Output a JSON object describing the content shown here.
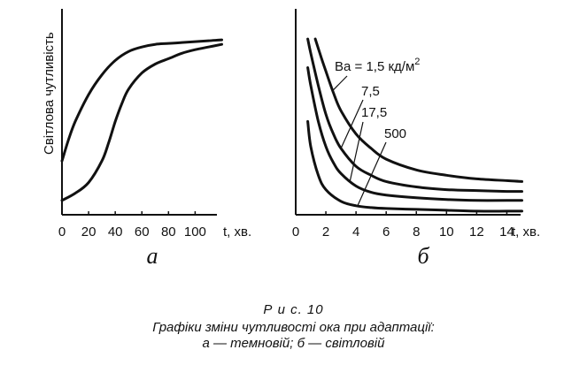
{
  "chart_data": [
    {
      "type": "line",
      "panel_label": "а",
      "ylabel": "Світлова чутливість",
      "xlabel": "t, хв.",
      "x_ticks": [
        "0",
        "20",
        "40",
        "60",
        "80",
        "100"
      ],
      "xlim": [
        0,
        125
      ],
      "ylim": [
        0,
        1
      ],
      "series": [
        {
          "x": [
            0,
            5,
            10,
            20,
            30,
            40,
            50,
            60,
            70,
            80,
            90,
            100,
            110,
            120
          ],
          "values": [
            0.3,
            0.42,
            0.52,
            0.67,
            0.78,
            0.86,
            0.91,
            0.935,
            0.95,
            0.955,
            0.96,
            0.965,
            0.97,
            0.975
          ]
        },
        {
          "x": [
            0,
            10,
            20,
            30,
            35,
            40,
            45,
            50,
            60,
            70,
            80,
            90,
            100,
            110,
            120
          ],
          "values": [
            0.08,
            0.12,
            0.18,
            0.3,
            0.4,
            0.52,
            0.62,
            0.7,
            0.79,
            0.84,
            0.87,
            0.9,
            0.92,
            0.935,
            0.95
          ]
        }
      ]
    },
    {
      "type": "line",
      "panel_label": "б",
      "xlabel": "t, хв.",
      "x_ticks": [
        "0",
        "2",
        "4",
        "6",
        "8",
        "10",
        "12",
        "14"
      ],
      "xlim": [
        0,
        15.5
      ],
      "ylim": [
        0,
        1
      ],
      "series": [
        {
          "name": "Ва = 1,5 кд/м",
          "name_superscript": "2",
          "x": [
            1.3,
            1.6,
            2,
            2.5,
            3,
            4,
            5,
            6,
            8,
            10,
            12,
            14,
            15
          ],
          "values": [
            0.98,
            0.9,
            0.8,
            0.68,
            0.58,
            0.45,
            0.37,
            0.31,
            0.25,
            0.22,
            0.2,
            0.19,
            0.185
          ]
        },
        {
          "name": "7,5",
          "x": [
            0.8,
            1,
            1.5,
            2,
            2.5,
            3,
            4,
            5,
            6,
            8,
            10,
            12,
            14,
            15
          ],
          "values": [
            0.98,
            0.9,
            0.72,
            0.56,
            0.45,
            0.37,
            0.27,
            0.22,
            0.185,
            0.155,
            0.14,
            0.135,
            0.13,
            0.13
          ]
        },
        {
          "name": "17,5",
          "x": [
            0.8,
            1,
            1.5,
            2,
            2.5,
            3,
            4,
            5,
            6,
            8,
            10,
            12,
            14,
            15
          ],
          "values": [
            0.82,
            0.72,
            0.52,
            0.38,
            0.29,
            0.23,
            0.16,
            0.125,
            0.11,
            0.095,
            0.085,
            0.08,
            0.08,
            0.08
          ]
        },
        {
          "name": "500",
          "x": [
            0.8,
            1,
            1.5,
            2,
            3,
            4,
            5,
            6,
            8,
            10,
            12,
            14,
            15
          ],
          "values": [
            0.52,
            0.38,
            0.22,
            0.14,
            0.075,
            0.05,
            0.04,
            0.035,
            0.03,
            0.025,
            0.02,
            0.02,
            0.02
          ]
        }
      ]
    }
  ],
  "caption": {
    "number": "Р и с.  10",
    "title": "Графіки зміни чутливості ока при адаптації:",
    "description": "а — темновій; б — світловій"
  }
}
